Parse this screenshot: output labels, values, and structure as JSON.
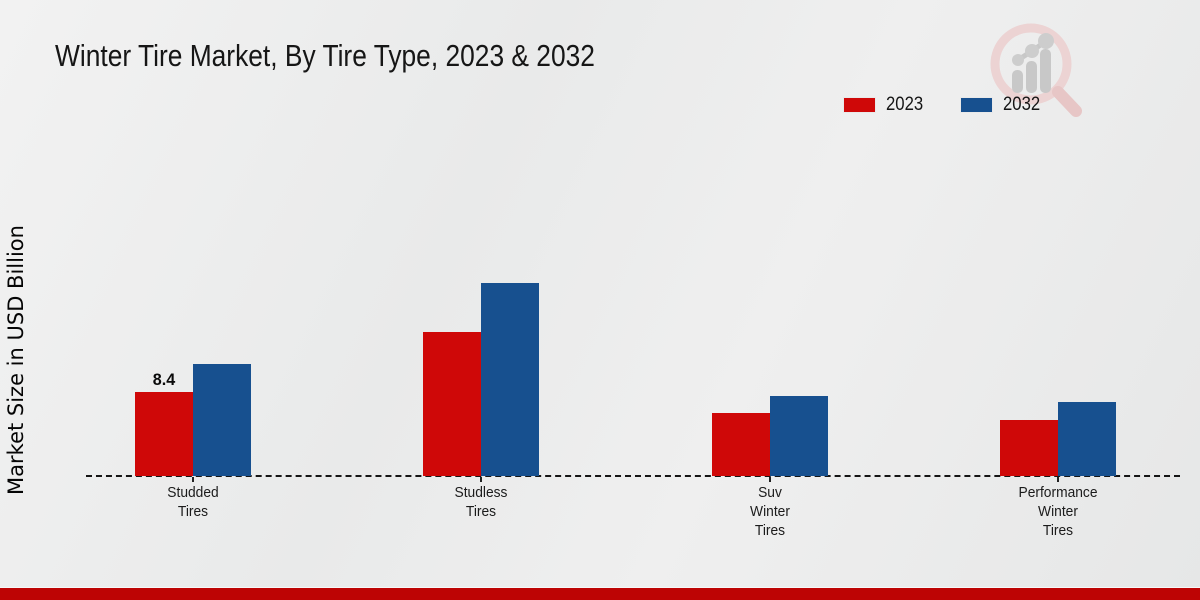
{
  "page": {
    "title": "Winter Tire Market, By Tire Type, 2023 & 2032",
    "watermark_icon": "magnifier-growth-chart-logo"
  },
  "chart_data": {
    "type": "bar",
    "title": "Winter Tire Market, By Tire Type, 2023 & 2032",
    "ylabel": "Market Size in USD Billion",
    "xlabel": "",
    "categories": [
      "Studded Tires",
      "Studless Tires",
      "Suv Winter Tires",
      "Performance Winter Tires"
    ],
    "category_label_lines": [
      [
        "Studded",
        "Tires"
      ],
      [
        "Studless",
        "Tires"
      ],
      [
        "Suv",
        "Winter",
        "Tires"
      ],
      [
        "Performance",
        "Winter",
        "Tires"
      ]
    ],
    "series": [
      {
        "name": "2023",
        "color": "#cf0808",
        "values": [
          8.4,
          14.4,
          6.3,
          5.6
        ]
      },
      {
        "name": "2032",
        "color": "#17508f",
        "values": [
          11.2,
          19.3,
          8.0,
          7.4
        ]
      }
    ],
    "data_labels": [
      {
        "series_index": 0,
        "category_index": 0,
        "text": "8.4"
      }
    ],
    "ylim": [
      0,
      20
    ],
    "grid": false,
    "legend_position": "top-right",
    "baseline_style": "dashed"
  },
  "footer": {
    "bar_color": "#bd0404"
  }
}
